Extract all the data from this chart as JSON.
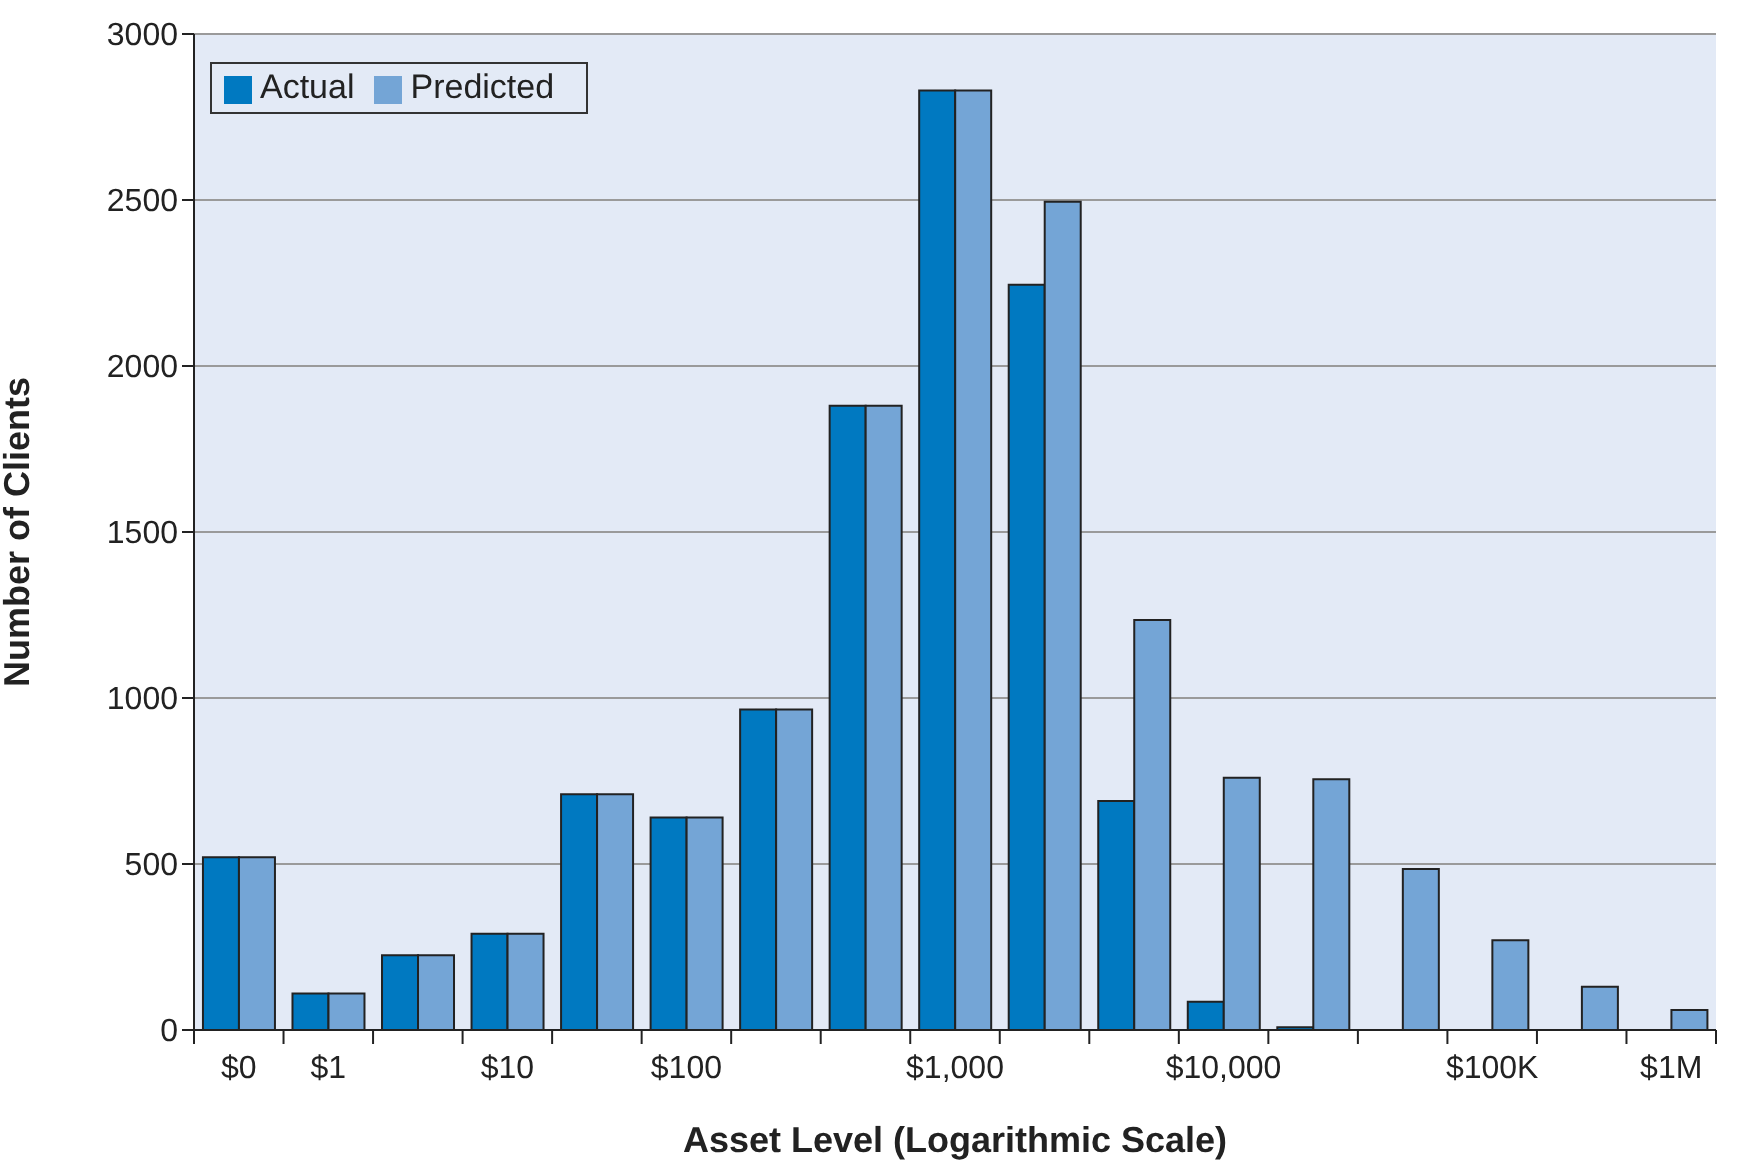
{
  "chart_data": {
    "type": "bar",
    "xlabel": "Asset Level (Logarithmic Scale)",
    "ylabel": "Number of Clients",
    "categories": [
      "$0",
      "$1",
      null,
      "$10",
      null,
      "$100",
      null,
      null,
      "$1,000",
      null,
      null,
      "$10,000",
      null,
      null,
      "$100K",
      null,
      "$1M"
    ],
    "series": [
      {
        "name": "Actual",
        "color": "#0079c1",
        "values": [
          520,
          110,
          225,
          290,
          710,
          640,
          965,
          1880,
          2830,
          2245,
          690,
          85,
          8,
          0,
          0,
          0,
          0
        ]
      },
      {
        "name": "Predicted",
        "color": "#74a5d6",
        "values": [
          520,
          110,
          225,
          290,
          710,
          640,
          965,
          1880,
          2830,
          2495,
          1235,
          760,
          755,
          485,
          270,
          130,
          60
        ]
      }
    ],
    "ylim": [
      0,
      3000
    ],
    "yticks": [
      0,
      500,
      1000,
      1500,
      2000,
      2500,
      3000
    ],
    "grid": "y",
    "legend": "top left"
  }
}
